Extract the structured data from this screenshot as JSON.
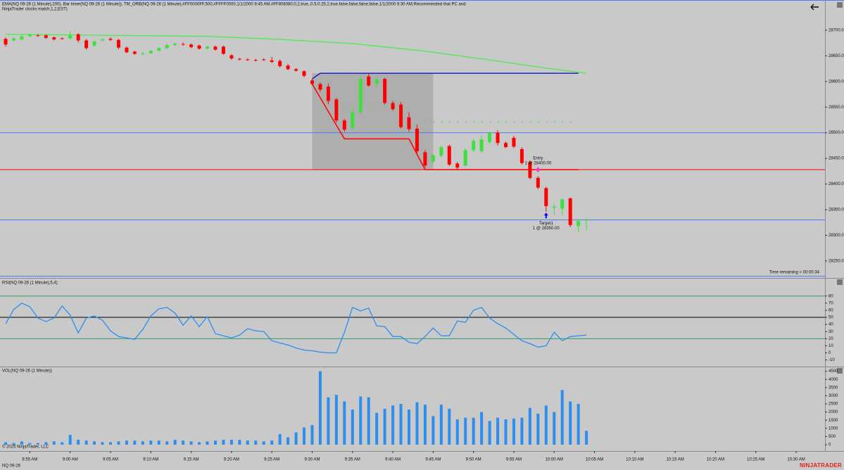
{
  "header": {
    "line1": "EMA(NQ 09-26 (1 Minute),200), Bar timer(NQ 09-26 (1 Minute)), TM_ORB(NQ 09-26 (1 Minute),#FF0000FF,500,#FFFF0000,1/1/2000 9:45 AM,#FF808080,0,2,true,,0.5,0.25,2,true,false,false,false,false,1/1/2000 9:30 AM,Recommended that PC and",
    "line2": "NinjaTrader clocks match,1,2,EST)",
    "timer": "Time remaining = 00:00:34"
  },
  "footer": {
    "copyright": "© 2025 NinjaTrader, LLC",
    "instrument": "NQ 09-26",
    "brand": "NINJATRADER"
  },
  "chart_data": [
    {
      "type": "candlestick",
      "up_color": "#3de03d",
      "down_color": "#ff0000",
      "xlim": [
        531.3,
        633.4
      ],
      "ylim": [
        28221,
        28752
      ],
      "yticks": [
        {
          "value": 28250,
          "label": "28250.00"
        },
        {
          "value": 28300,
          "label": "28300.00"
        },
        {
          "value": 28350,
          "label": "28350.00"
        },
        {
          "value": 28400,
          "label": "28400.00"
        },
        {
          "value": 28450,
          "label": "28450.00"
        },
        {
          "value": 28500,
          "label": "28500.00"
        },
        {
          "value": 28550,
          "label": "28550.00"
        },
        {
          "value": 28600,
          "label": "28600.00"
        },
        {
          "value": 28650,
          "label": "28650.00"
        },
        {
          "value": 28700,
          "label": "28700.00"
        }
      ],
      "x": [
        532,
        533,
        534,
        535,
        536,
        537,
        538,
        539,
        540,
        541,
        542,
        543,
        544,
        545,
        546,
        547,
        548,
        549,
        550,
        551,
        552,
        553,
        554,
        555,
        556,
        557,
        558,
        559,
        560,
        561,
        562,
        563,
        564,
        565,
        566,
        567,
        568,
        569,
        570,
        571,
        572,
        573,
        574,
        575,
        576,
        577,
        578,
        579,
        580,
        581,
        582,
        583,
        584,
        585,
        586,
        587,
        588,
        589,
        590,
        591,
        592,
        593,
        594,
        595,
        596,
        597,
        598,
        599,
        600,
        601,
        602,
        603,
        604
      ],
      "open": [
        28683,
        28680,
        28682,
        28688,
        28690,
        28690,
        28686,
        28684,
        28684,
        28692,
        28680,
        28670,
        28680,
        28683,
        28681,
        28666,
        28658,
        28654,
        28655,
        28660,
        28665,
        28671,
        28673,
        28672,
        28670,
        28664,
        28668,
        28668,
        28651,
        28644,
        28643,
        28642,
        28643,
        28641,
        28640,
        28631,
        28624,
        28620,
        28602,
        28595,
        28590,
        28565,
        28524,
        28510,
        28540,
        28610,
        28596,
        28605,
        28558,
        28555,
        28530,
        28508,
        28462,
        28444,
        28455,
        28474,
        28440,
        28436,
        28466,
        28464,
        28482,
        28500,
        28480,
        28490,
        28468,
        28443,
        28412,
        28392,
        28354,
        28352,
        28372,
        28318,
        28329
      ],
      "high": [
        28686,
        28686,
        28690,
        28693,
        28692,
        28692,
        28688,
        28686,
        28698,
        28694,
        28683,
        28680,
        28684,
        28686,
        28683,
        28668,
        28660,
        28657,
        28661,
        28667,
        28673,
        28675,
        28676,
        28674,
        28672,
        28670,
        28670,
        28670,
        28653,
        28646,
        28645,
        28644,
        28645,
        28648,
        28643,
        28634,
        28626,
        28622,
        28606,
        28598,
        28596,
        28568,
        28527,
        28545,
        28612,
        28615,
        28608,
        28607,
        28562,
        28560,
        28540,
        28516,
        28466,
        28458,
        28475,
        28477,
        28443,
        28470,
        28488,
        28495,
        28502,
        28505,
        28483,
        28494,
        28472,
        28446,
        28415,
        28395,
        28362,
        28372,
        28374,
        28332,
        28333
      ],
      "low": [
        28668,
        28678,
        28680,
        28686,
        28687,
        28683,
        28680,
        28682,
        28682,
        28676,
        28662,
        28668,
        28678,
        28679,
        28663,
        28655,
        28652,
        28651,
        28653,
        28658,
        28663,
        28669,
        28670,
        28665,
        28662,
        28662,
        28660,
        28652,
        28642,
        28641,
        28640,
        28639,
        28640,
        28636,
        28627,
        28622,
        28619,
        28608,
        28592,
        28580,
        28556,
        28520,
        28502,
        28505,
        28535,
        28590,
        28590,
        28555,
        28543,
        28508,
        28502,
        28460,
        28432,
        28440,
        28452,
        28435,
        28428,
        28434,
        28462,
        28460,
        28478,
        28475,
        28470,
        28470,
        28438,
        28409,
        28390,
        28346,
        28340,
        28340,
        28316,
        28306,
        28310
      ],
      "close": [
        28672,
        28684,
        28688,
        28691,
        28689,
        28685,
        28682,
        28683,
        28690,
        28680,
        28665,
        28678,
        28682,
        28681,
        28666,
        28657,
        28654,
        28655,
        28660,
        28665,
        28671,
        28674,
        28672,
        28667,
        28664,
        28668,
        28662,
        28654,
        28645,
        28643,
        28642,
        28641,
        28642,
        28638,
        28630,
        28624,
        28621,
        28611,
        28595,
        28584,
        28562,
        28524,
        28506,
        28540,
        28605,
        28592,
        28604,
        28558,
        28546,
        28511,
        28507,
        28464,
        28436,
        28456,
        28472,
        28438,
        28432,
        28466,
        28484,
        28487,
        28500,
        28480,
        28472,
        28473,
        28441,
        28412,
        28393,
        28357,
        28356,
        28370,
        28320,
        28328,
        28330
      ],
      "ema": {
        "color": "#44ee44",
        "x": [
          532,
          557,
          566,
          575,
          584,
          592,
          599,
          604
        ],
        "values": [
          28692,
          28688,
          28682,
          28674,
          28659,
          28642,
          28626,
          28616
        ]
      },
      "orb_box": {
        "color": "#a9a9a9",
        "x": [
          570,
          585
        ],
        "values": [
          28428,
          28616
        ]
      },
      "orb_high": {
        "color": "#0000cc",
        "x": [
          570,
          571,
          603
        ],
        "values": [
          28605,
          28616,
          28616
        ]
      },
      "orb_low": {
        "color": "#ff0000",
        "x": [
          570,
          574,
          582,
          584,
          603
        ],
        "values": [
          28595,
          28488,
          28488,
          28428,
          28428
        ]
      },
      "targets": [
        {
          "color": "#3de03d",
          "x": [
            574,
            582
          ],
          "values": [
            28550,
            28550
          ]
        },
        {
          "color": "#3de03d",
          "x": [
            584,
            603
          ],
          "values": [
            28521,
            28521
          ]
        }
      ],
      "hlines": [
        {
          "value": 28500,
          "color": "#4a7cff"
        },
        {
          "value": 28330,
          "color": "#4a7cff"
        },
        {
          "value": 28428,
          "color": "#ff0000"
        }
      ],
      "entry": {
        "x": 598,
        "value": 28428,
        "color": "#ff33cc",
        "label": "Entry",
        "detail": "1 @ 28400.00"
      },
      "target": {
        "x": 599,
        "value": 28340,
        "color": "#0000ff",
        "label": "Target1",
        "detail": "1 @ 28350.00"
      }
    },
    {
      "type": "line",
      "title": "RSI(NQ 09-26 (1 Minute),5,4)",
      "color": "#2b8ef0",
      "ylim": [
        -18.3,
        103.5
      ],
      "yticks": [
        -10,
        0,
        10,
        20,
        30,
        40,
        50,
        60,
        70,
        80
      ],
      "levels": [
        {
          "value": 80,
          "color": "#3a9a6a"
        },
        {
          "value": 50,
          "color": "#000000"
        },
        {
          "value": 20,
          "color": "#3a9a6a"
        }
      ],
      "values": [
        41,
        61,
        70,
        65,
        49,
        44,
        49,
        66,
        53,
        28,
        49,
        52,
        46,
        31,
        23,
        21,
        19,
        33,
        52,
        62,
        64,
        56,
        39,
        52,
        37,
        51,
        27,
        24,
        21,
        25,
        34,
        31,
        30,
        17,
        14,
        11,
        7,
        4,
        3,
        1,
        0,
        0,
        29,
        64,
        59,
        63,
        38,
        37,
        23,
        23,
        15,
        13,
        23,
        35,
        24,
        24,
        45,
        43,
        60,
        64,
        49,
        41,
        35,
        26,
        17,
        13,
        8,
        10,
        29,
        17,
        23,
        24,
        25
      ]
    },
    {
      "type": "bar",
      "title": "VOL(NQ 09-26 (1 Minute))",
      "color": "#2b8ef0",
      "ylim": [
        -345,
        4655
      ],
      "yticks": [
        0,
        500,
        1000,
        1500,
        2000,
        2500,
        3000,
        3500,
        4000,
        4500
      ],
      "xticks": [
        {
          "value": 535,
          "label": "8:55 AM"
        },
        {
          "value": 540,
          "label": "9:00 AM"
        },
        {
          "value": 545,
          "label": "9:05 AM"
        },
        {
          "value": 550,
          "label": "9:10 AM"
        },
        {
          "value": 555,
          "label": "9:15 AM"
        },
        {
          "value": 560,
          "label": "9:20 AM"
        },
        {
          "value": 565,
          "label": "9:25 AM"
        },
        {
          "value": 570,
          "label": "9:30 AM"
        },
        {
          "value": 575,
          "label": "9:35 AM"
        },
        {
          "value": 580,
          "label": "9:40 AM"
        },
        {
          "value": 585,
          "label": "9:45 AM"
        },
        {
          "value": 590,
          "label": "9:50 AM"
        },
        {
          "value": 595,
          "label": "9:55 AM"
        },
        {
          "value": 600,
          "label": "10:00 AM"
        },
        {
          "value": 605,
          "label": "10:05 AM"
        },
        {
          "value": 610,
          "label": "10:10 AM"
        },
        {
          "value": 615,
          "label": "10:15 AM"
        },
        {
          "value": 620,
          "label": "10:20 AM"
        },
        {
          "value": 625,
          "label": "10:25 AM"
        },
        {
          "value": 630,
          "label": "10:30 AM"
        }
      ],
      "values": [
        150,
        100,
        200,
        100,
        100,
        150,
        200,
        150,
        600,
        300,
        250,
        200,
        150,
        150,
        200,
        250,
        250,
        200,
        250,
        250,
        200,
        300,
        250,
        200,
        150,
        200,
        250,
        300,
        300,
        300,
        250,
        250,
        200,
        250,
        650,
        450,
        750,
        1050,
        1200,
        4500,
        2900,
        3050,
        2650,
        2150,
        2950,
        2900,
        1950,
        2200,
        2400,
        2500,
        2150,
        2600,
        2450,
        1750,
        2450,
        2200,
        1550,
        1650,
        1650,
        2000,
        1450,
        1650,
        1550,
        1600,
        1650,
        2250,
        1900,
        2400,
        2000,
        3350,
        2650,
        2500,
        850
      ]
    }
  ]
}
